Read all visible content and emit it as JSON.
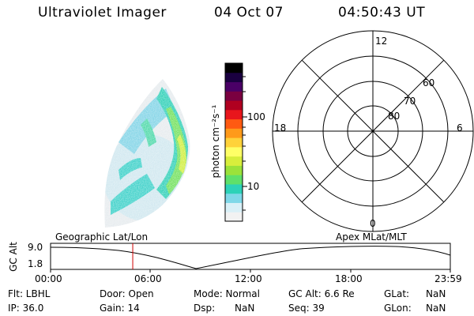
{
  "header": {
    "instrument": "Ultraviolet Imager",
    "date": "04 Oct 07",
    "time": "04:50:43 UT"
  },
  "colorbar": {
    "unit_label": "photon cm⁻²s⁻¹",
    "ticks": [
      "100",
      "10"
    ],
    "colors": [
      "#f2f2f2",
      "#d9f0f7",
      "#7fd8e8",
      "#2dd2b8",
      "#5fe06a",
      "#9be23a",
      "#d8ee3c",
      "#ffff66",
      "#ffd23a",
      "#ff9a1a",
      "#ff5a12",
      "#e8161c",
      "#b00020",
      "#7a0040",
      "#4a0066",
      "#1a0040",
      "#000000"
    ]
  },
  "polar_plot": {
    "mlt_labels": {
      "top": "12",
      "bottom": "0",
      "left": "18",
      "right": "6"
    },
    "lat_labels": [
      "60",
      "70",
      "80"
    ]
  },
  "altitude_strip": {
    "axis_label": "GC Alt",
    "y_ticks": [
      "9.0",
      "1.8"
    ],
    "left_caption": "Geographic Lat/Lon",
    "right_caption": "Apex MLat/MLT",
    "x_ticks": [
      "00:00",
      "06:00",
      "12:00",
      "18:00",
      "23:59"
    ],
    "current_time_marker_fraction": 0.2056
  },
  "info": {
    "filter": "Flt: LBHL",
    "ip": "IP: 36.0",
    "door": "Door: Open",
    "gain": "Gain: 14",
    "mode": "Mode: Normal",
    "dsp_label": "Dsp:",
    "dsp_value": "NaN",
    "gc_alt": "GC Alt: 6.6 Re",
    "seq": "Seq: 39",
    "glat_label": "GLat:",
    "glat_value": "NaN",
    "glon_label": "GLon:",
    "glon_value": "NaN"
  }
}
